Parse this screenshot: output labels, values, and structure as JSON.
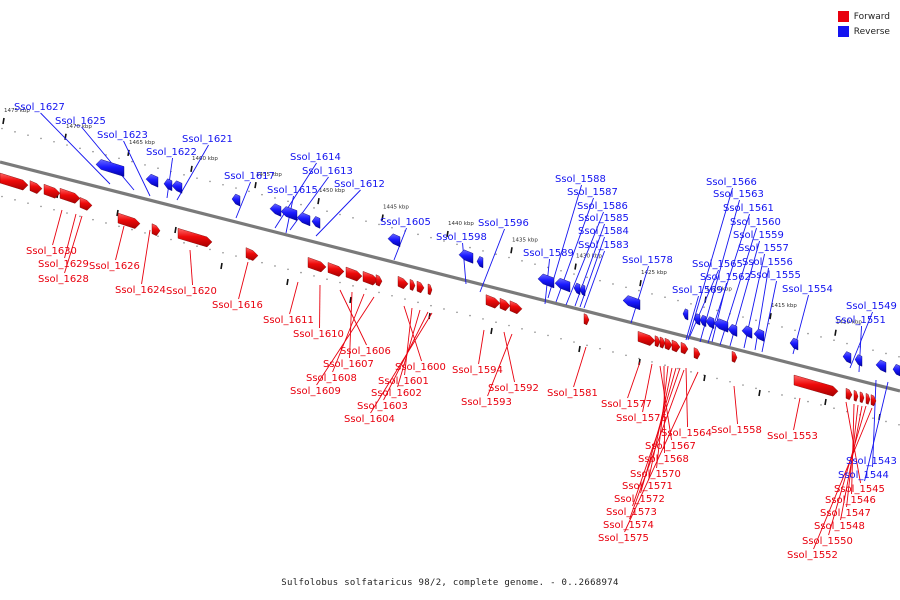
{
  "colors": {
    "forward": "#e8000e",
    "reverse": "#1414f0",
    "backbone": "#777777"
  },
  "legend": [
    {
      "label": "Forward",
      "strand": "forward"
    },
    {
      "label": "Reverse",
      "strand": "reverse"
    }
  ],
  "caption": "Sulfolobus solfataricus 98/2, complete genome. - 0..2668974",
  "ticks": [
    "1475 kbp",
    "1470 kbp",
    "1465 kbp",
    "1460 kbp",
    "1455 kbp",
    "1450 kbp",
    "1445 kbp",
    "1440 kbp",
    "1435 kbp",
    "1430 kbp",
    "1425 kbp",
    "1420 kbp",
    "1415 kbp",
    "1410 kbp"
  ],
  "genes_reverse": [
    "Ssol_1627",
    "Ssol_1625",
    "Ssol_1623",
    "Ssol_1622",
    "Ssol_1621",
    "Ssol_1617",
    "Ssol_1614",
    "Ssol_1613",
    "Ssol_1615",
    "Ssol_1612",
    "Ssol_1605",
    "Ssol_1598",
    "Ssol_1596",
    "Ssol_1588",
    "Ssol_1587",
    "Ssol_1586",
    "Ssol_1585",
    "Ssol_1584",
    "Ssol_1583",
    "Ssol_1589",
    "Ssol_1578",
    "Ssol_1566",
    "Ssol_1563",
    "Ssol_1561",
    "Ssol_1560",
    "Ssol_1559",
    "Ssol_1557",
    "Ssol_1565",
    "Ssol_1556",
    "Ssol_1562",
    "Ssol_1555",
    "Ssol_1569",
    "Ssol_1554",
    "Ssol_1549",
    "Ssol_1551",
    "Ssol_1543",
    "Ssol_1544"
  ],
  "genes_forward": [
    "Ssol_1630",
    "Ssol_1629",
    "Ssol_1628",
    "Ssol_1626",
    "Ssol_1624",
    "Ssol_1620",
    "Ssol_1616",
    "Ssol_1611",
    "Ssol_1610",
    "Ssol_1606",
    "Ssol_1607",
    "Ssol_1608",
    "Ssol_1609",
    "Ssol_1600",
    "Ssol_1601",
    "Ssol_1602",
    "Ssol_1603",
    "Ssol_1604",
    "Ssol_1594",
    "Ssol_1592",
    "Ssol_1593",
    "Ssol_1581",
    "Ssol_1577",
    "Ssol_1576",
    "Ssol_1564",
    "Ssol_1567",
    "Ssol_1568",
    "Ssol_1570",
    "Ssol_1571",
    "Ssol_1572",
    "Ssol_1573",
    "Ssol_1574",
    "Ssol_1575",
    "Ssol_1558",
    "Ssol_1553",
    "Ssol_1545",
    "Ssol_1546",
    "Ssol_1547",
    "Ssol_1548",
    "Ssol_1550",
    "Ssol_1552"
  ]
}
